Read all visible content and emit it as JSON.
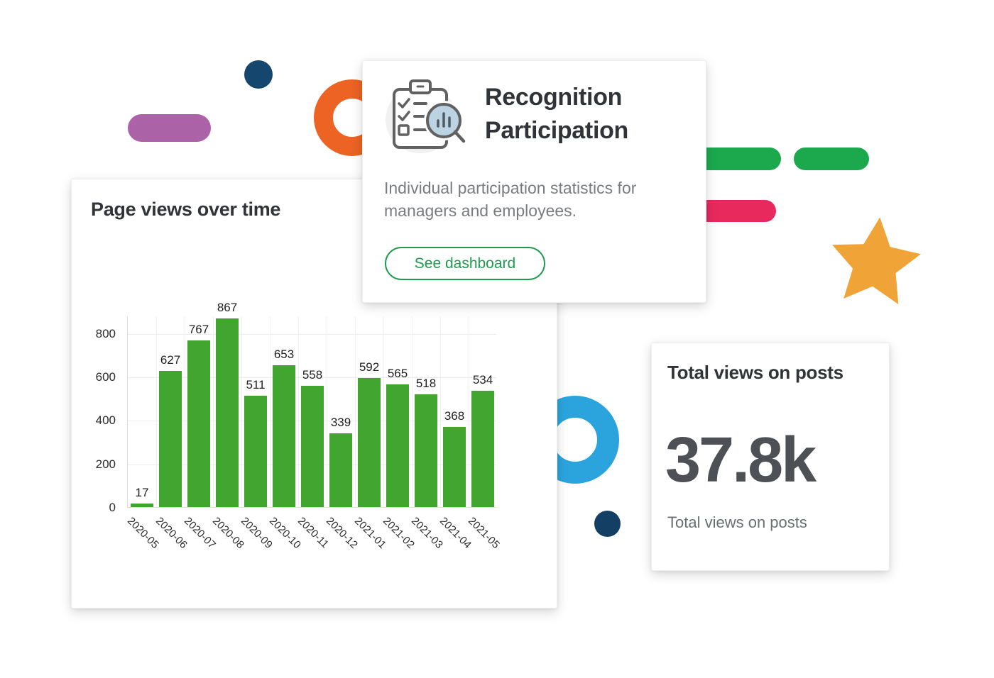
{
  "page": {
    "background": "#ffffff"
  },
  "cards": {
    "page_views": {
      "title": "Page views over time"
    },
    "recognition": {
      "title": "Recognition Participation",
      "description": "Individual participation statistics for managers and employees.",
      "button_label": "See dashboard",
      "icon": "clipboard-checklist-magnifier-chart-icon",
      "accent_color": "#1d9b4e"
    },
    "total_views": {
      "title": "Total views on posts",
      "value": "37.8k",
      "subtitle": "Total views on posts"
    }
  },
  "chart_data": {
    "type": "bar",
    "title": "Page views over time",
    "categories": [
      "2020-05",
      "2020-06",
      "2020-07",
      "2020-08",
      "2020-09",
      "2020-10",
      "2020-11",
      "2020-12",
      "2021-01",
      "2021-02",
      "2021-03",
      "2021-04",
      "2021-05"
    ],
    "values": [
      17,
      627,
      767,
      867,
      511,
      653,
      558,
      339,
      592,
      565,
      518,
      368,
      534
    ],
    "y_ticks": [
      0,
      200,
      400,
      600,
      800
    ],
    "ylim": [
      0,
      880
    ],
    "xlabel": "",
    "ylabel": "",
    "bar_color": "#41a52f",
    "grid": true,
    "legend": "none",
    "value_labels_shown": true,
    "x_tick_rotation_deg": 45
  },
  "decorations": {
    "purple_pill_color": "#ac62a7",
    "navy_dot_color": "#14466e",
    "orange_ring_color": "#ec6323",
    "green_pill_color": "#1ca94e",
    "pink_pill_color": "#e8295e",
    "star_color": "#f0a437",
    "blue_ring_color": "#2ba4dd"
  }
}
